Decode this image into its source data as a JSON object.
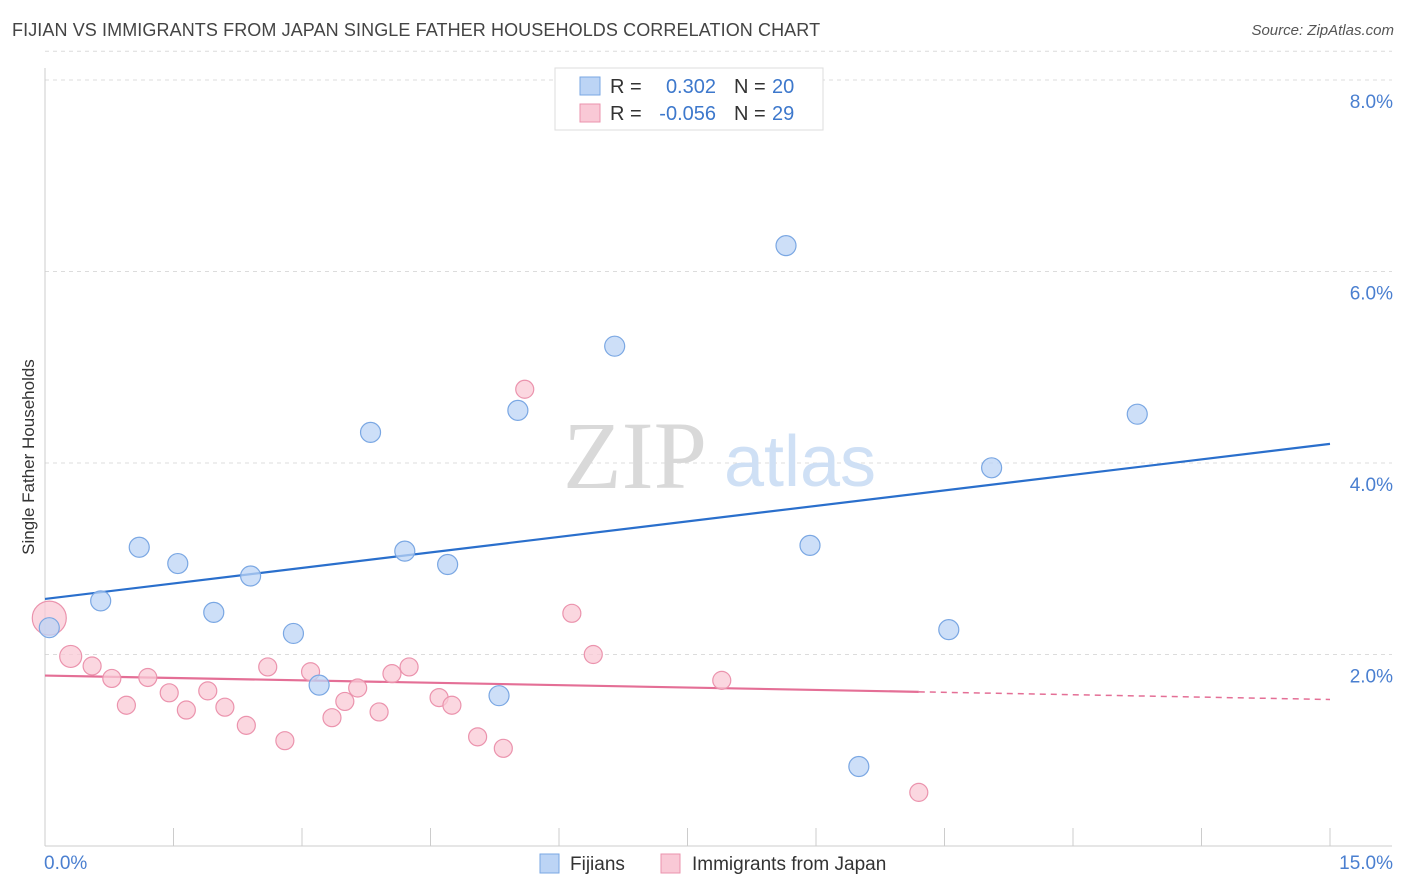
{
  "title": "FIJIAN VS IMMIGRANTS FROM JAPAN SINGLE FATHER HOUSEHOLDS CORRELATION CHART",
  "source": "Source: ZipAtlas.com",
  "watermark": {
    "zip": "ZIP",
    "atlas": "atlas"
  },
  "colors": {
    "fijians_fill": "#bcd4f5",
    "fijians_stroke": "#7aa7e3",
    "fijians_line": "#2a6fcc",
    "japan_fill": "#f9c9d6",
    "japan_stroke": "#eb93ad",
    "japan_line": "#e46f96"
  },
  "legend": {
    "rows": [
      {
        "r_label": "R =",
        "r_value": "0.302",
        "n_label": "N =",
        "n_value": "20"
      },
      {
        "r_label": "R =",
        "r_value": "-0.056",
        "n_label": "N =",
        "n_value": "29"
      }
    ]
  },
  "chart_data": {
    "type": "scatter",
    "title": "FIJIAN VS IMMIGRANTS FROM JAPAN SINGLE FATHER HOUSEHOLDS CORRELATION CHART",
    "xlabel": "",
    "ylabel": "Single Father Households",
    "xlim": [
      0,
      15
    ],
    "ylim": [
      0,
      8.3
    ],
    "x_tick_labels": [
      "0.0%",
      "15.0%"
    ],
    "y_ticks": [
      2,
      4,
      6,
      8
    ],
    "y_tick_labels": [
      "2.0%",
      "4.0%",
      "6.0%",
      "8.0%"
    ],
    "grid": true,
    "legend_placement": "top-center",
    "series": [
      {
        "name": "Fijians",
        "points": [
          [
            0.05,
            2.28
          ],
          [
            0.65,
            2.56
          ],
          [
            1.1,
            3.12
          ],
          [
            1.55,
            2.95
          ],
          [
            1.97,
            2.44
          ],
          [
            2.4,
            2.82
          ],
          [
            2.9,
            2.22
          ],
          [
            3.2,
            1.68
          ],
          [
            3.8,
            4.32
          ],
          [
            4.2,
            3.08
          ],
          [
            4.7,
            2.94
          ],
          [
            5.3,
            1.57
          ],
          [
            5.52,
            4.55
          ],
          [
            6.65,
            5.22
          ],
          [
            8.65,
            6.27
          ],
          [
            8.93,
            3.14
          ],
          [
            9.5,
            0.83
          ],
          [
            10.55,
            2.26
          ],
          [
            11.05,
            3.95
          ],
          [
            12.75,
            4.51
          ]
        ],
        "sizes": [
          20,
          20,
          20,
          20,
          20,
          20,
          20,
          20,
          20,
          20,
          20,
          20,
          20,
          20,
          20,
          20,
          20,
          20,
          20,
          20
        ],
        "trend": {
          "x": [
            0,
            15
          ],
          "y": [
            2.58,
            4.2
          ],
          "solid_until": 15
        }
      },
      {
        "name": "Immigrants from Japan",
        "points": [
          [
            0.05,
            2.38
          ],
          [
            0.3,
            1.98
          ],
          [
            0.55,
            1.88
          ],
          [
            0.78,
            1.75
          ],
          [
            0.95,
            1.47
          ],
          [
            1.2,
            1.76
          ],
          [
            1.45,
            1.6
          ],
          [
            1.65,
            1.42
          ],
          [
            1.9,
            1.62
          ],
          [
            2.1,
            1.45
          ],
          [
            2.35,
            1.26
          ],
          [
            2.6,
            1.87
          ],
          [
            2.8,
            1.1
          ],
          [
            3.1,
            1.82
          ],
          [
            3.35,
            1.34
          ],
          [
            3.5,
            1.51
          ],
          [
            3.65,
            1.65
          ],
          [
            3.9,
            1.4
          ],
          [
            4.05,
            1.8
          ],
          [
            4.25,
            1.87
          ],
          [
            4.6,
            1.55
          ],
          [
            4.75,
            1.47
          ],
          [
            5.05,
            1.14
          ],
          [
            5.35,
            1.02
          ],
          [
            5.6,
            4.77
          ],
          [
            6.15,
            2.43
          ],
          [
            6.4,
            2.0
          ],
          [
            7.9,
            1.73
          ],
          [
            10.2,
            0.56
          ]
        ],
        "sizes": [
          34,
          22,
          18,
          18,
          18,
          18,
          18,
          18,
          18,
          18,
          18,
          18,
          18,
          18,
          18,
          18,
          18,
          18,
          18,
          18,
          18,
          18,
          18,
          18,
          18,
          18,
          18,
          18,
          18
        ],
        "trend": {
          "x": [
            0,
            15
          ],
          "y": [
            1.78,
            1.53
          ],
          "solid_until": 10.2
        }
      }
    ]
  }
}
